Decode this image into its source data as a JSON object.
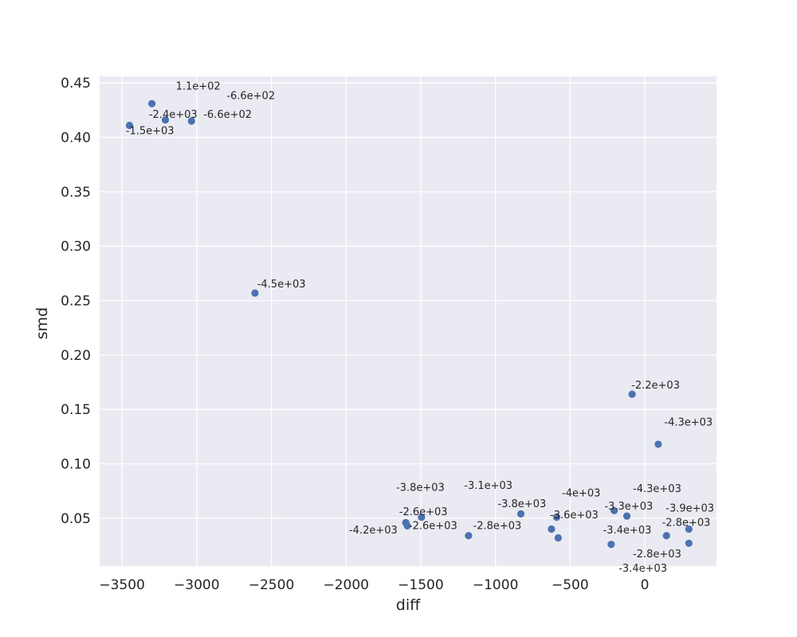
{
  "chart_data": {
    "type": "scatter",
    "title": "",
    "xlabel": "diff",
    "ylabel": "smd",
    "xlim": [
      -3650,
      480
    ],
    "ylim": [
      0.006,
      0.456
    ],
    "xticks": [
      -3500,
      -3000,
      -2500,
      -2000,
      -1500,
      -1000,
      -500,
      0
    ],
    "yticks": [
      0.05,
      0.1,
      0.15,
      0.2,
      0.25,
      0.3,
      0.35,
      0.4,
      0.45
    ],
    "xtick_labels": [
      "−3500",
      "−3000",
      "−2500",
      "−2000",
      "−1500",
      "−1000",
      "−500",
      "0"
    ],
    "ytick_labels": [
      "0.05",
      "0.10",
      "0.15",
      "0.20",
      "0.25",
      "0.30",
      "0.35",
      "0.40",
      "0.45"
    ],
    "grid": true,
    "point_color": "#4c72b0",
    "background_color": "#eaeaf2",
    "points": [
      {
        "x": -3300,
        "y": 0.431
      },
      {
        "x": -3210,
        "y": 0.416
      },
      {
        "x": -3035,
        "y": 0.415
      },
      {
        "x": -3450,
        "y": 0.411
      },
      {
        "x": -2610,
        "y": 0.257
      },
      {
        "x": -85,
        "y": 0.164
      },
      {
        "x": 90,
        "y": 0.118
      },
      {
        "x": -1495,
        "y": 0.051
      },
      {
        "x": -1600,
        "y": 0.046
      },
      {
        "x": -1590,
        "y": 0.043
      },
      {
        "x": -1180,
        "y": 0.034
      },
      {
        "x": -830,
        "y": 0.054
      },
      {
        "x": -590,
        "y": 0.051
      },
      {
        "x": -625,
        "y": 0.04
      },
      {
        "x": -580,
        "y": 0.032
      },
      {
        "x": -205,
        "y": 0.057
      },
      {
        "x": -120,
        "y": 0.052
      },
      {
        "x": -225,
        "y": 0.026
      },
      {
        "x": 145,
        "y": 0.034
      },
      {
        "x": 295,
        "y": 0.04
      },
      {
        "x": 295,
        "y": 0.027
      }
    ],
    "annotations": [
      {
        "text": "1.1e+02",
        "x": -3140,
        "y": 0.444
      },
      {
        "text": "-6.6e+02",
        "x": -2800,
        "y": 0.435
      },
      {
        "text": "-2.4e+03",
        "x": -3320,
        "y": 0.418
      },
      {
        "text": "-6.6e+02",
        "x": -2955,
        "y": 0.418
      },
      {
        "text": "-1.5e+03",
        "x": -3475,
        "y": 0.403
      },
      {
        "text": "-4.5e+03",
        "x": -2595,
        "y": 0.262
      },
      {
        "text": "-2.2e+03",
        "x": -90,
        "y": 0.169
      },
      {
        "text": "-4.3e+03",
        "x": 130,
        "y": 0.135
      },
      {
        "text": "-3.8e+03",
        "x": -1665,
        "y": 0.075
      },
      {
        "text": "-3.1e+03",
        "x": -1210,
        "y": 0.077
      },
      {
        "text": "-4e+03",
        "x": -555,
        "y": 0.07
      },
      {
        "text": "-4.3e+03",
        "x": -80,
        "y": 0.074
      },
      {
        "text": "-3.8e+03",
        "x": -985,
        "y": 0.06
      },
      {
        "text": "-2.6e+03",
        "x": -1645,
        "y": 0.053
      },
      {
        "text": "-3.6e+03",
        "x": -635,
        "y": 0.05
      },
      {
        "text": "-3.3e+03",
        "x": -270,
        "y": 0.058
      },
      {
        "text": "-3.9e+03",
        "x": 140,
        "y": 0.056
      },
      {
        "text": "-2.8e+03",
        "x": -1150,
        "y": 0.04
      },
      {
        "text": "-2.6e+03",
        "x": -1580,
        "y": 0.04
      },
      {
        "text": "-4.2e+03",
        "x": -1980,
        "y": 0.036
      },
      {
        "text": "-2.8e+03",
        "x": 115,
        "y": 0.043
      },
      {
        "text": "-3.4e+03",
        "x": -280,
        "y": 0.036
      },
      {
        "text": "-2.8e+03",
        "x": -80,
        "y": 0.014
      },
      {
        "text": "-3.4e+03",
        "x": -175,
        "y": 0.001
      }
    ]
  }
}
